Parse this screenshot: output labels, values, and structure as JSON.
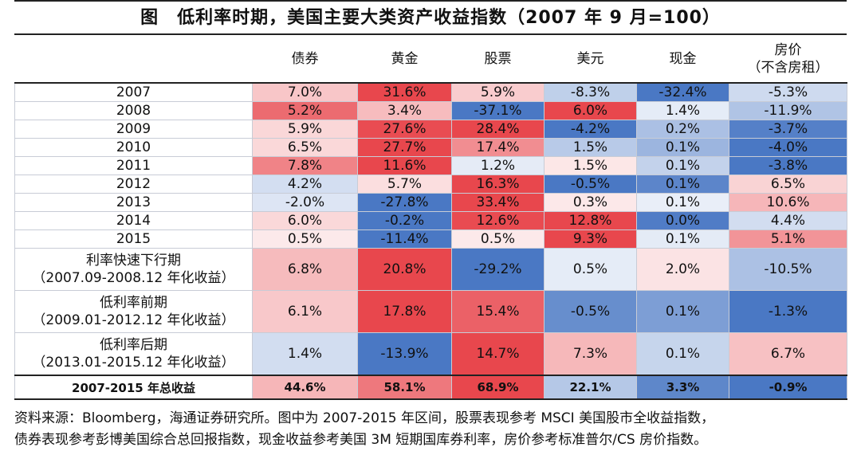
{
  "title": "图　低利率时期，美国主要大类资产收益指数（2007 年 9 月=100）",
  "chart_data": {
    "type": "table",
    "columns": [
      "债券",
      "黄金",
      "股票",
      "美元",
      "现金",
      "房价",
      "（不含房租）"
    ],
    "rows": [
      {
        "label": "2007",
        "values": [
          "7.0%",
          "31.6%",
          "5.9%",
          "-8.3%",
          "-32.4%",
          "-5.3%"
        ],
        "num": [
          7.0,
          31.6,
          5.9,
          -8.3,
          -32.4,
          -5.3
        ]
      },
      {
        "label": "2008",
        "values": [
          "5.2%",
          "3.4%",
          "-37.1%",
          "6.0%",
          "1.4%",
          "-11.9%"
        ],
        "num": [
          5.2,
          3.4,
          -37.1,
          6.0,
          1.4,
          -11.9
        ]
      },
      {
        "label": "2009",
        "values": [
          "5.9%",
          "27.6%",
          "28.4%",
          "-4.2%",
          "0.2%",
          "-3.7%"
        ],
        "num": [
          5.9,
          27.6,
          28.4,
          -4.2,
          0.2,
          -3.7
        ]
      },
      {
        "label": "2010",
        "values": [
          "6.5%",
          "27.7%",
          "17.4%",
          "1.5%",
          "0.1%",
          "-4.0%"
        ],
        "num": [
          6.5,
          27.7,
          17.4,
          1.5,
          0.1,
          -4.0
        ]
      },
      {
        "label": "2011",
        "values": [
          "7.8%",
          "11.6%",
          "1.2%",
          "1.5%",
          "0.1%",
          "-3.8%"
        ],
        "num": [
          7.8,
          11.6,
          1.2,
          1.5,
          0.1,
          -3.8
        ]
      },
      {
        "label": "2012",
        "values": [
          "4.2%",
          "5.7%",
          "16.3%",
          "-0.5%",
          "0.1%",
          "6.5%"
        ],
        "num": [
          4.2,
          5.7,
          16.3,
          -0.5,
          0.1,
          6.5
        ]
      },
      {
        "label": "2013",
        "values": [
          "-2.0%",
          "-27.8%",
          "33.4%",
          "0.3%",
          "0.1%",
          "10.6%"
        ],
        "num": [
          -2.0,
          -27.8,
          33.4,
          0.3,
          0.1,
          10.6
        ]
      },
      {
        "label": "2014",
        "values": [
          "6.0%",
          "-0.2%",
          "12.6%",
          "12.8%",
          "0.0%",
          "4.4%"
        ],
        "num": [
          6.0,
          -0.2,
          12.6,
          12.8,
          0.0,
          4.4
        ]
      },
      {
        "label": "2015",
        "values": [
          "0.5%",
          "-11.4%",
          "0.5%",
          "9.3%",
          "0.1%",
          "5.1%"
        ],
        "num": [
          0.5,
          -11.4,
          0.5,
          9.3,
          0.1,
          5.1
        ]
      }
    ],
    "summary_rows": [
      {
        "label": "利率快速下行期",
        "sublabel": "（2007.09-2008.12 年化收益）",
        "values": [
          "6.8%",
          "20.8%",
          "-29.2%",
          "0.5%",
          "2.0%",
          "-10.5%"
        ],
        "num": [
          6.8,
          20.8,
          -29.2,
          0.5,
          2.0,
          -10.5
        ]
      },
      {
        "label": "低利率前期",
        "sublabel": "（2009.01-2012.12 年化收益）",
        "values": [
          "6.1%",
          "17.8%",
          "15.4%",
          "-0.5%",
          "0.1%",
          "-1.3%"
        ],
        "num": [
          6.1,
          17.8,
          15.4,
          -0.5,
          0.1,
          -1.3
        ]
      },
      {
        "label": "低利率后期",
        "sublabel": "（2013.01-2015.12 年化收益）",
        "values": [
          "1.4%",
          "-13.9%",
          "14.7%",
          "7.3%",
          "0.1%",
          "6.7%"
        ],
        "num": [
          1.4,
          -13.9,
          14.7,
          7.3,
          0.1,
          6.7
        ]
      }
    ],
    "total_row": {
      "label": "2007-2015 年总收益",
      "values": [
        "44.6%",
        "58.1%",
        "68.9%",
        "22.1%",
        "3.3%",
        "-0.9%"
      ],
      "num": [
        44.6,
        58.1,
        68.9,
        22.1,
        3.3,
        -0.9
      ]
    },
    "colors": {
      "red": "#e8474d",
      "white": "#ffffff",
      "blue": "#4a78c4"
    }
  },
  "footnote": {
    "line1": "资料来源：Bloomberg，海通证券研究所。图中为 2007-2015 年区间，股票表现参考 MSCI 美国股市全收益指数，",
    "line2": "债券表现参考彭博美国综合总回报指数，现金收益参考美国 3M 短期国库券利率，房价参考标准普尔/CS 房价指数。"
  }
}
